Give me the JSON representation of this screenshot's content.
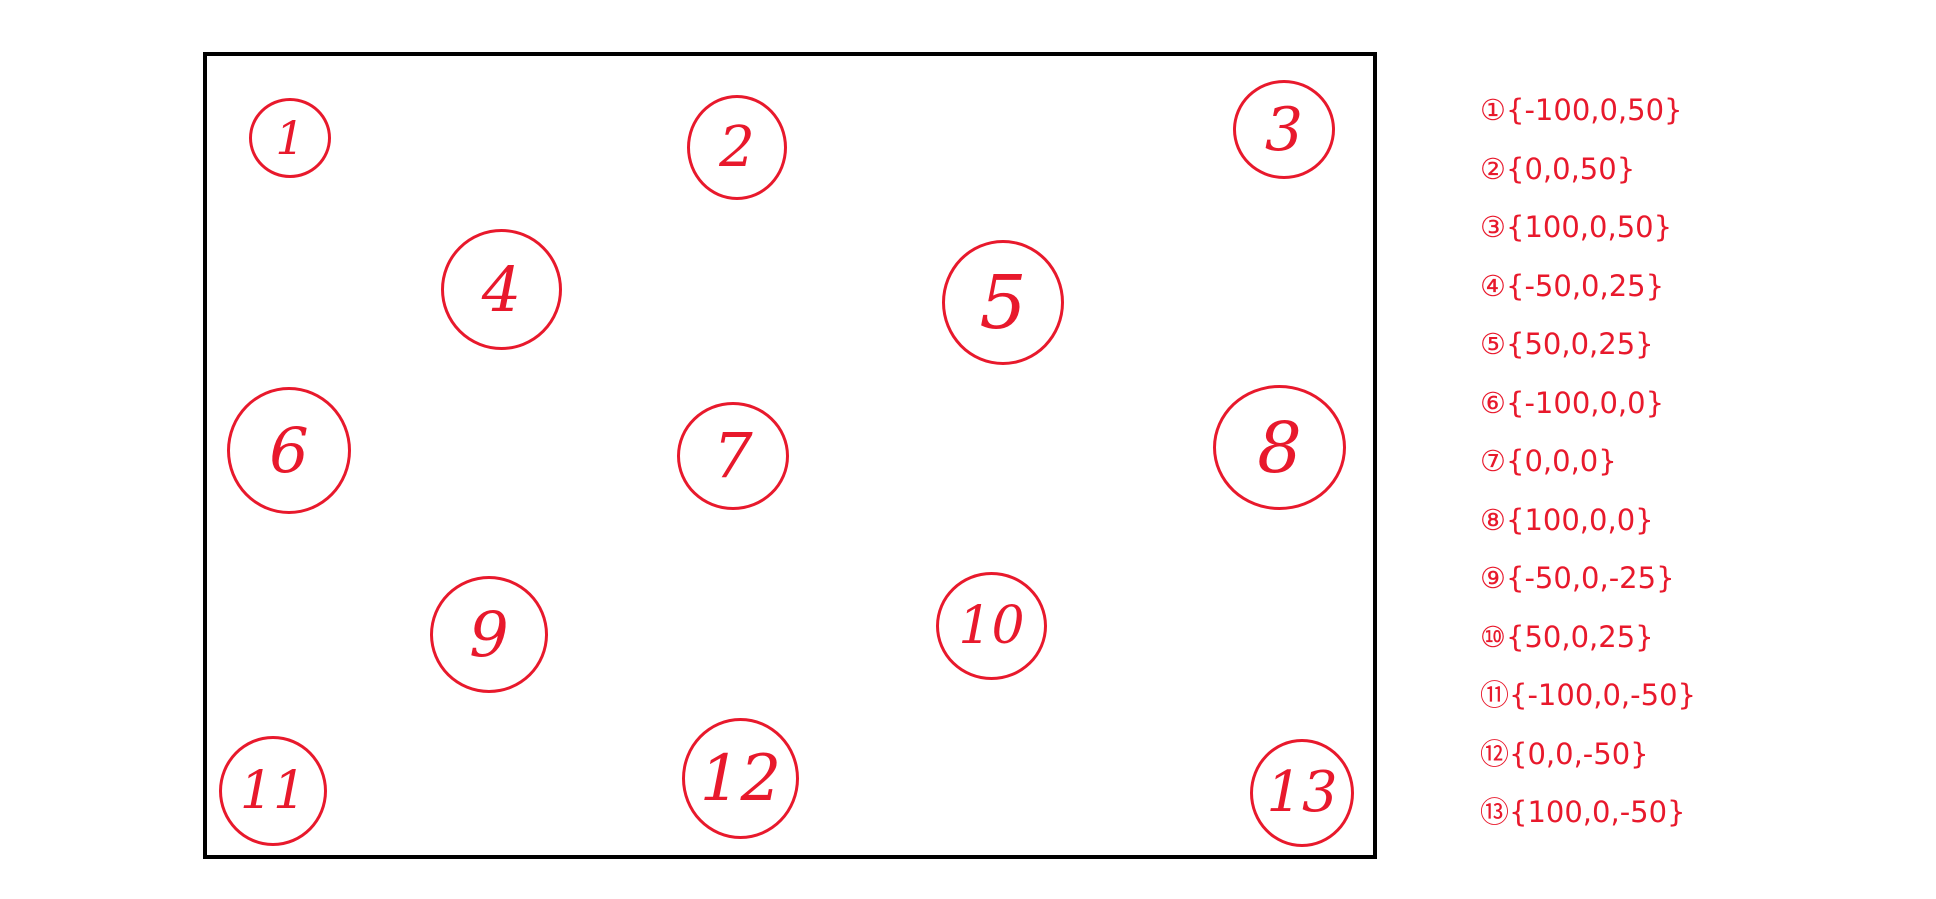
{
  "accent_color": "#e8192c",
  "frame_color": "#000000",
  "markers": [
    "1",
    "2",
    "3",
    "4",
    "5",
    "6",
    "7",
    "8",
    "9",
    "10",
    "11",
    "12",
    "13"
  ],
  "legend": [
    "①{-100,0,50}",
    "②{0,0,50}",
    "③{100,0,50}",
    "④{-50,0,25}",
    "⑤{50,0,25}",
    "⑥{-100,0,0}",
    "⑦{0,0,0}",
    "⑧{100,0,0}",
    "⑨{-50,0,-25}",
    "⑩{50,0,25}",
    "⑪{-100,0,-50}",
    "⑫{0,0,-50}",
    "⑬{100,0,-50}"
  ]
}
